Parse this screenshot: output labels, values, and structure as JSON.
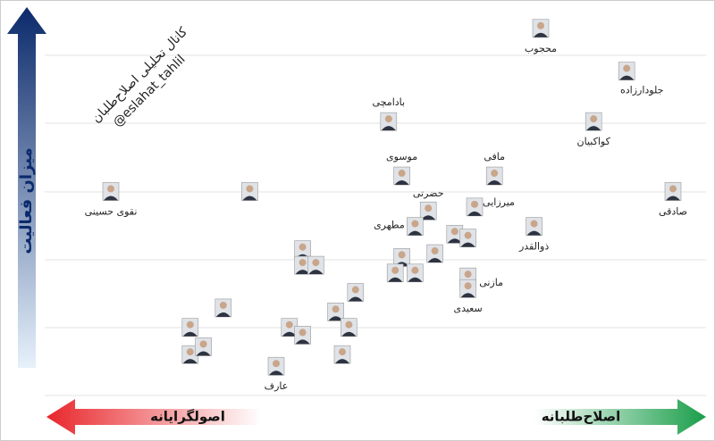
{
  "chart_data": {
    "type": "scatter",
    "ylabel": "میزان فعالیت",
    "left_label": "اصولگرایانه",
    "right_label": "اصلاح‌طلبانه",
    "watermark": [
      "کانال تحلیلی اصلاح‌طلبان",
      "@eslahat_tahlil"
    ],
    "xlim": [
      0,
      100
    ],
    "ylim": [
      0,
      100
    ],
    "labels": [
      "محجوب",
      "جلودارزاده",
      "بادامچی",
      "کواکبیان",
      "موسوی",
      "مافی",
      "نقوی حسینی",
      null,
      "صادقی",
      "حضرتی",
      "میرزایی",
      "مطهری",
      "ذوالقدر",
      null,
      null,
      null,
      null,
      null,
      null,
      null,
      null,
      null,
      "مازنی",
      "سعیدی",
      null,
      null,
      null,
      null,
      null,
      null,
      null,
      null,
      null,
      null,
      "عارف"
    ],
    "x": [
      75,
      88,
      52,
      83,
      54,
      68,
      10,
      31,
      95,
      58,
      65,
      56,
      74,
      62,
      64,
      59,
      39,
      39,
      41,
      54,
      53,
      56,
      64,
      64,
      47,
      44,
      27,
      22,
      37,
      39,
      46,
      22,
      24,
      45,
      35
    ],
    "values": [
      95,
      84,
      71,
      71,
      57,
      57,
      53,
      53,
      53,
      48,
      49,
      44,
      44,
      42,
      41,
      37,
      38,
      34,
      34,
      36,
      32,
      32,
      31,
      28,
      27,
      22,
      23,
      18,
      18,
      16,
      18,
      11,
      13,
      11,
      8
    ]
  }
}
